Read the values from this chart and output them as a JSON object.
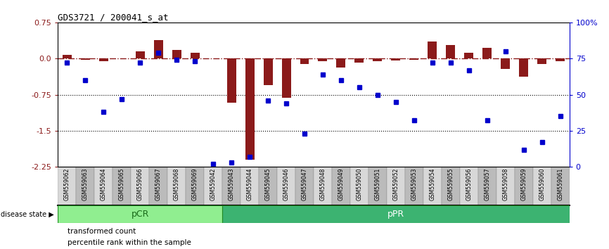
{
  "title": "GDS3721 / 200041_s_at",
  "samples": [
    "GSM559062",
    "GSM559063",
    "GSM559064",
    "GSM559065",
    "GSM559066",
    "GSM559067",
    "GSM559068",
    "GSM559069",
    "GSM559042",
    "GSM559043",
    "GSM559044",
    "GSM559045",
    "GSM559046",
    "GSM559047",
    "GSM559048",
    "GSM559049",
    "GSM559050",
    "GSM559051",
    "GSM559052",
    "GSM559053",
    "GSM559054",
    "GSM559055",
    "GSM559056",
    "GSM559057",
    "GSM559058",
    "GSM559059",
    "GSM559060",
    "GSM559061"
  ],
  "red_values": [
    0.08,
    -0.02,
    -0.05,
    0.0,
    0.15,
    0.38,
    0.18,
    0.12,
    0.0,
    -0.92,
    -2.1,
    -0.55,
    -0.82,
    -0.12,
    -0.05,
    -0.18,
    -0.08,
    -0.06,
    -0.04,
    -0.02,
    0.35,
    0.28,
    0.12,
    0.22,
    -0.22,
    -0.38,
    -0.12,
    -0.05
  ],
  "blue_values": [
    72,
    60,
    38,
    47,
    72,
    79,
    74,
    73,
    2,
    3,
    7,
    46,
    44,
    23,
    64,
    60,
    55,
    50,
    45,
    32,
    72,
    72,
    67,
    32,
    80,
    12,
    17,
    35
  ],
  "pcr_count": 9,
  "ylim_left": [
    -2.25,
    0.75
  ],
  "ylim_right": [
    0,
    100
  ],
  "yticks_left": [
    0.75,
    0.0,
    -0.75,
    -1.5,
    -2.25
  ],
  "ytick_right_labels": [
    "100%",
    "75",
    "50",
    "25",
    "0"
  ],
  "yticks_right": [
    100,
    75,
    50,
    25,
    0
  ],
  "dotted_lines": [
    -0.75,
    -1.5
  ],
  "bar_color": "#8B1A1A",
  "dot_color": "#0000CC",
  "pcr_color": "#90EE90",
  "ppr_color": "#3CB371",
  "pcr_label": "pCR",
  "ppr_label": "pPR",
  "disease_state_label": "disease state",
  "legend_red_label": "transformed count",
  "legend_blue_label": "percentile rank within the sample"
}
